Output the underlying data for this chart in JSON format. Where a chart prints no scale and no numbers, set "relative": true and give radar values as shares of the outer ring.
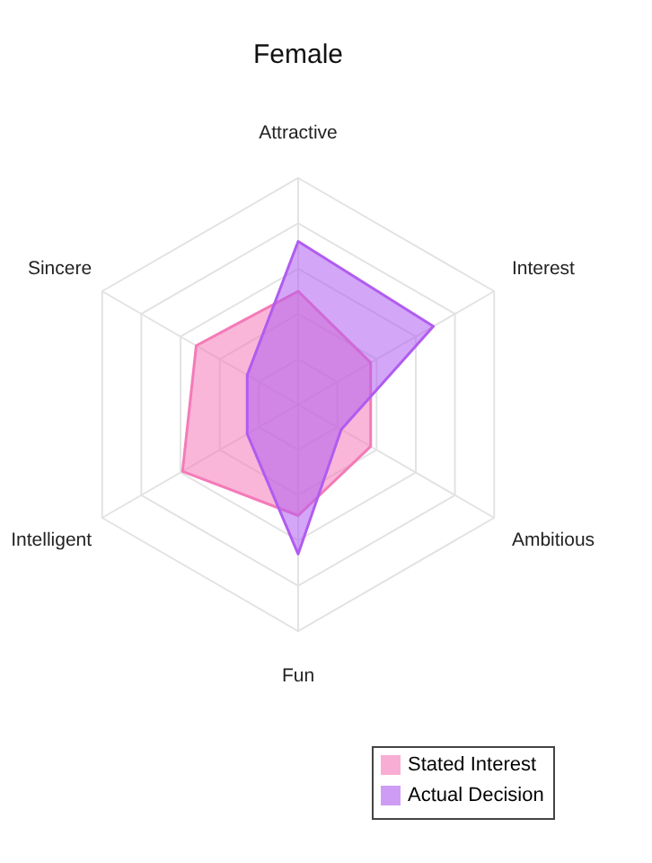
{
  "chart_data": {
    "type": "radar",
    "title": "Female",
    "relative": true,
    "grid": true,
    "legend": "bottom right",
    "categories": [
      "Attractive",
      "Interest",
      "Ambitious",
      "Fun",
      "Intelligent",
      "Sincere"
    ],
    "series": [
      {
        "name": "Stated Interest",
        "color": "#f47ab8",
        "values": [
          0.5,
          0.37,
          0.37,
          0.49,
          0.59,
          0.52
        ]
      },
      {
        "name": "Actual Decision",
        "color": "#b05cf0",
        "values": [
          0.72,
          0.69,
          0.22,
          0.66,
          0.26,
          0.26
        ]
      }
    ]
  }
}
